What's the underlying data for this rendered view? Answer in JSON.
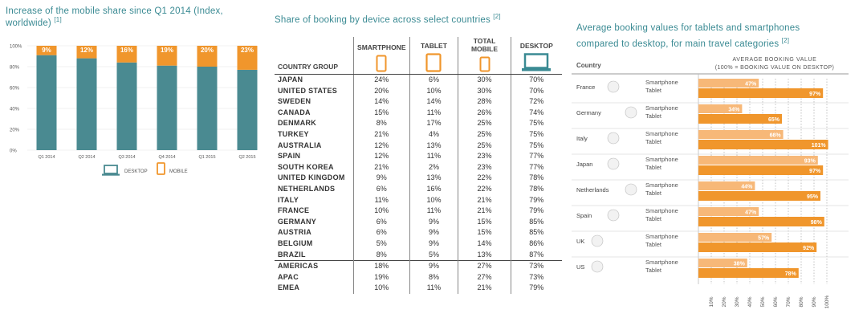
{
  "colors": {
    "desktop": "#4a8a91",
    "mobile": "#f0962c",
    "mobile_light": "#f7b878",
    "title": "#3a8a93"
  },
  "panel1": {
    "title": "Increase of the mobile share since Q1 2014 (Index, worldwide)",
    "ref": "[1]",
    "legend": {
      "desktop": "DESKTOP",
      "mobile": "MOBILE"
    },
    "chart_data": {
      "type": "bar",
      "categories": [
        "Q1 2014",
        "Q2 2014",
        "Q3 2014",
        "Q4 2014",
        "Q1 2015",
        "Q2 2015"
      ],
      "series": [
        {
          "name": "DESKTOP",
          "values": [
            91,
            88,
            84,
            81,
            80,
            77
          ]
        },
        {
          "name": "MOBILE",
          "values": [
            9,
            12,
            16,
            19,
            20,
            23
          ]
        }
      ],
      "data_labels": [
        "9%",
        "12%",
        "16%",
        "19%",
        "20%",
        "23%"
      ],
      "yticks": [
        "0%",
        "20%",
        "40%",
        "60%",
        "80%",
        "100%"
      ],
      "ylim": [
        0,
        100
      ],
      "stacked": true
    }
  },
  "panel2": {
    "title": "Share of booking by device across select countries",
    "ref": "[2]",
    "chart_data": {
      "type": "table",
      "columns": [
        "COUNTRY GROUP",
        "SMARTPHONE",
        "TABLET",
        "TOTAL MOBILE",
        "DESKTOP"
      ],
      "rows": [
        [
          "JAPAN",
          "24%",
          "6%",
          "30%",
          "70%"
        ],
        [
          "UNITED STATES",
          "20%",
          "10%",
          "30%",
          "70%"
        ],
        [
          "SWEDEN",
          "14%",
          "14%",
          "28%",
          "72%"
        ],
        [
          "CANADA",
          "15%",
          "11%",
          "26%",
          "74%"
        ],
        [
          "DENMARK",
          "8%",
          "17%",
          "25%",
          "75%"
        ],
        [
          "TURKEY",
          "21%",
          "4%",
          "25%",
          "75%"
        ],
        [
          "AUSTRALIA",
          "12%",
          "13%",
          "25%",
          "75%"
        ],
        [
          "SPAIN",
          "12%",
          "11%",
          "23%",
          "77%"
        ],
        [
          "SOUTH KOREA",
          "21%",
          "2%",
          "23%",
          "77%"
        ],
        [
          "UNITED KINGDOM",
          "9%",
          "13%",
          "22%",
          "78%"
        ],
        [
          "NETHERLANDS",
          "6%",
          "16%",
          "22%",
          "78%"
        ],
        [
          "ITALY",
          "11%",
          "10%",
          "21%",
          "79%"
        ],
        [
          "FRANCE",
          "10%",
          "11%",
          "21%",
          "79%"
        ],
        [
          "GERMANY",
          "6%",
          "9%",
          "15%",
          "85%"
        ],
        [
          "AUSTRIA",
          "6%",
          "9%",
          "15%",
          "85%"
        ],
        [
          "BELGIUM",
          "5%",
          "9%",
          "14%",
          "86%"
        ],
        [
          "BRAZIL",
          "8%",
          "5%",
          "13%",
          "87%"
        ]
      ],
      "group_rows": [
        [
          "AMERICAS",
          "18%",
          "9%",
          "27%",
          "73%"
        ],
        [
          "APAC",
          "19%",
          "8%",
          "27%",
          "73%"
        ],
        [
          "EMEA",
          "10%",
          "11%",
          "21%",
          "79%"
        ]
      ]
    }
  },
  "panel3": {
    "title_line1": "Average booking values for tablets and smartphones",
    "title_line2": "compared to desktop, for main travel categories",
    "ref": "[2]",
    "country_header": "Country",
    "value_header_line1": "AVERAGE BOOKING VALUE",
    "value_header_line2": "(100% = BOOKING VALUE ON DESKTOP)",
    "chart_data": {
      "type": "bar",
      "orientation": "horizontal",
      "categories": [
        "France",
        "Germany",
        "Italy",
        "Japan",
        "Netherlands",
        "Spain",
        "UK",
        "US"
      ],
      "series": [
        {
          "name": "Smartphone",
          "values": [
            47,
            34,
            66,
            93,
            44,
            47,
            57,
            38
          ]
        },
        {
          "name": "Tablet",
          "values": [
            97,
            65,
            101,
            97,
            95,
            98,
            92,
            78
          ]
        }
      ],
      "xticks": [
        "10%",
        "20%",
        "30%",
        "40%",
        "50%",
        "60%",
        "70%",
        "80%",
        "90%",
        "100%"
      ],
      "xlim": [
        0,
        110
      ]
    }
  }
}
